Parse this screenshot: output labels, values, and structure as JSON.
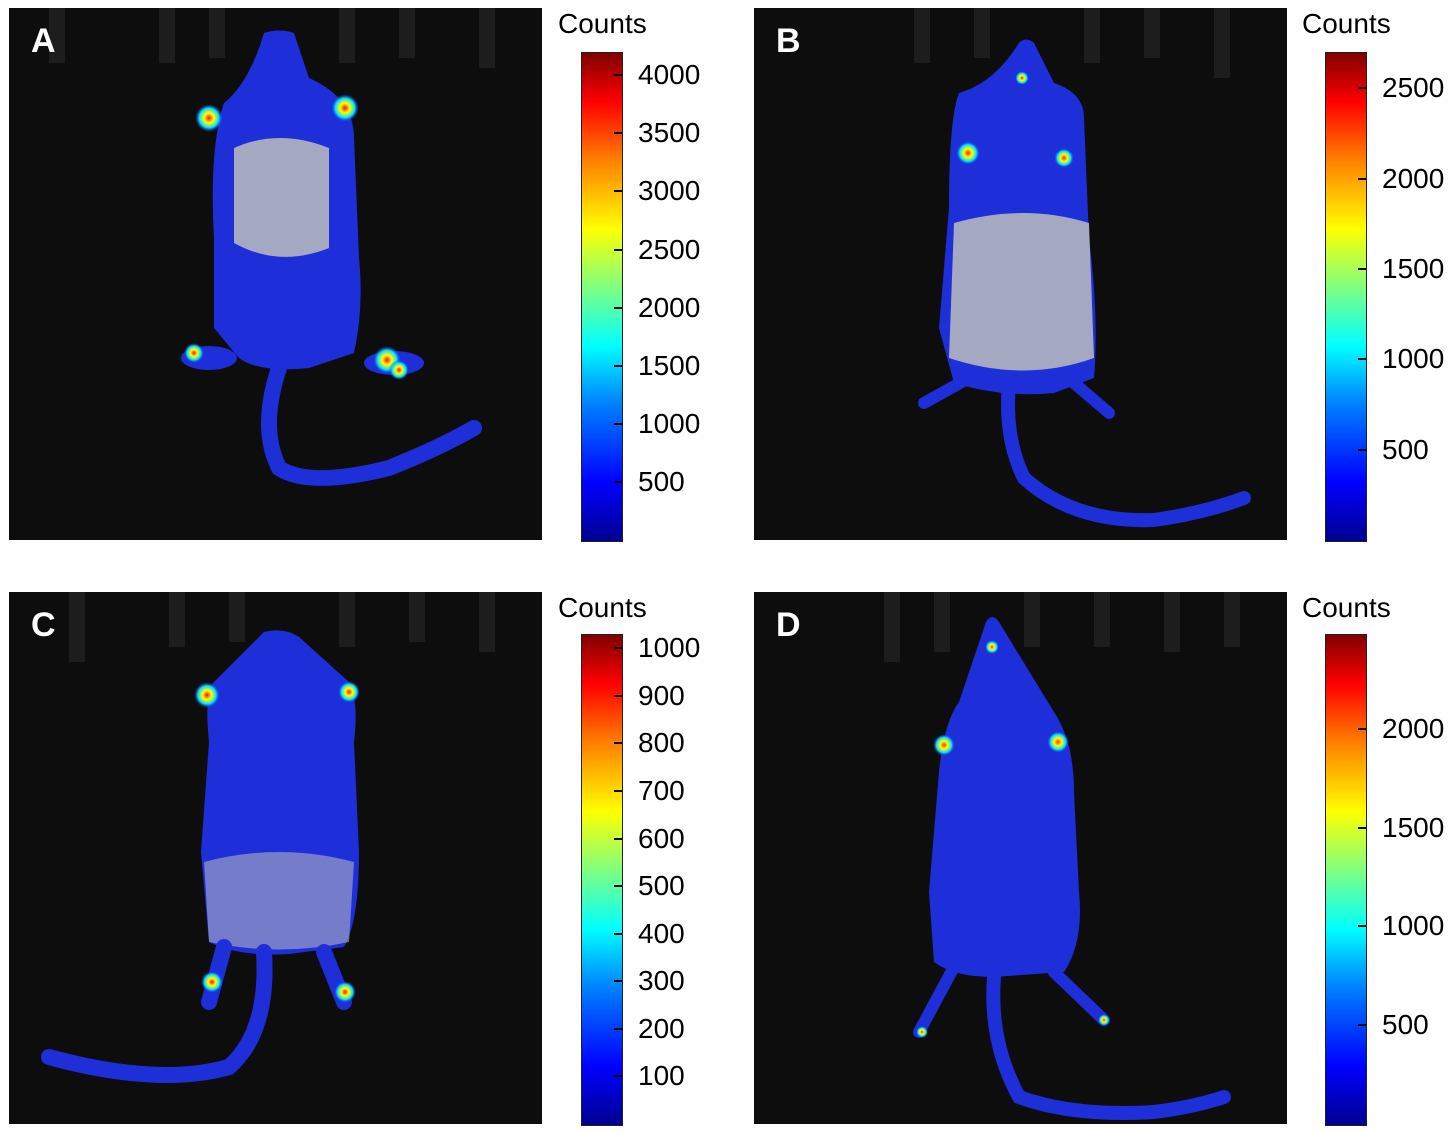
{
  "panels": [
    {
      "letter": "A",
      "colorbar": {
        "title": "Counts",
        "min": 0,
        "max": 4200,
        "ticks": [
          500,
          1000,
          1500,
          2000,
          2500,
          3000,
          3500,
          4000
        ],
        "tick_labels": [
          "500",
          "1000",
          "1500",
          "2000",
          "2500",
          "3000",
          "3500",
          "4000"
        ]
      },
      "view": "ventral",
      "hotspots": "paws"
    },
    {
      "letter": "B",
      "colorbar": {
        "title": "Counts",
        "min": 0,
        "max": 2700,
        "ticks": [
          500,
          1000,
          1500,
          2000,
          2500
        ],
        "tick_labels": [
          "500",
          "1000",
          "1500",
          "2000",
          "2500"
        ]
      },
      "view": "ventral",
      "hotspots": "paws"
    },
    {
      "letter": "C",
      "colorbar": {
        "title": "Counts",
        "min": 0,
        "max": 1030,
        "ticks": [
          100,
          200,
          300,
          400,
          500,
          600,
          700,
          800,
          900,
          1000
        ],
        "tick_labels": [
          "100",
          "200",
          "300",
          "400",
          "500",
          "600",
          "700",
          "800",
          "900",
          "1000"
        ]
      },
      "view": "ventral",
      "hotspots": "paws"
    },
    {
      "letter": "D",
      "colorbar": {
        "title": "Counts",
        "min": 0,
        "max": 2480,
        "ticks": [
          500,
          1000,
          1500,
          2000
        ],
        "tick_labels": [
          "500",
          "1000",
          "1500",
          "2000"
        ]
      },
      "view": "dorsal",
      "hotspots": "paws"
    }
  ],
  "colors": {
    "background": "#0d0d0d",
    "body_signal": "#1a2be6",
    "hot": "#ff2000"
  }
}
